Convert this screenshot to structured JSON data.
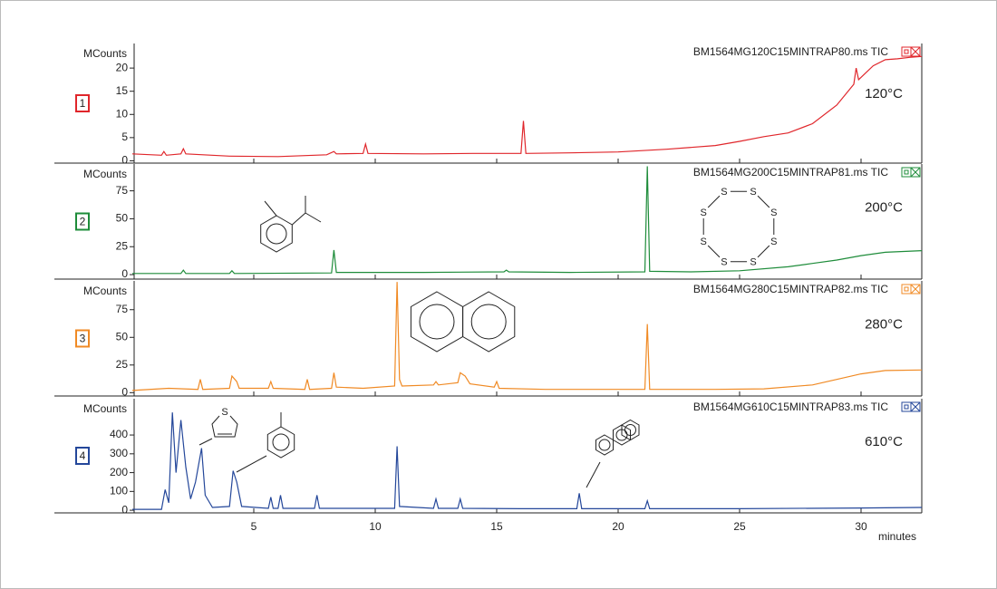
{
  "chart_data": [
    {
      "type": "line",
      "panel_label": "1",
      "title": "BM1564MG120C15MINTRAP80.ms TIC",
      "ylabel": "MCounts",
      "annotation": "120°C",
      "color": "#e0262b",
      "xlim": [
        0,
        32.5
      ],
      "ylim": [
        -0.5,
        25.3
      ],
      "yticks": [
        0,
        5,
        10,
        15,
        20
      ],
      "x": [
        0,
        1.2,
        1.3,
        1.4,
        2.0,
        2.1,
        2.2,
        4,
        6,
        8,
        8.3,
        8.4,
        9.5,
        9.6,
        9.7,
        12,
        14,
        16.0,
        16.1,
        16.2,
        18,
        20,
        22,
        24,
        25,
        26,
        27,
        28,
        29,
        29.7,
        29.8,
        29.9,
        30.5,
        31,
        31.5,
        32,
        32.5
      ],
      "values": [
        1.5,
        1.2,
        2,
        1.2,
        1.5,
        2.6,
        1.5,
        1.0,
        0.9,
        1.3,
        2,
        1.5,
        1.6,
        3.6,
        1.6,
        1.5,
        1.6,
        1.6,
        8.6,
        1.6,
        1.7,
        1.9,
        2.5,
        3.3,
        4.2,
        5.2,
        6.0,
        8.0,
        12.0,
        16.5,
        20,
        17.5,
        20.5,
        21.8,
        22,
        22.3,
        22.5
      ]
    },
    {
      "type": "line",
      "panel_label": "2",
      "title": "BM1564MG200C15MINTRAP81.ms TIC",
      "ylabel": "MCounts",
      "annotation": "200°C",
      "color": "#1e8c3a",
      "xlim": [
        0,
        32.5
      ],
      "ylim": [
        -4,
        99
      ],
      "yticks": [
        0,
        25,
        50,
        75
      ],
      "structure_atoms": [
        "S",
        "S",
        "S",
        "S",
        "S",
        "S",
        "S",
        "S"
      ],
      "x": [
        0,
        2.0,
        2.1,
        2.2,
        4.0,
        4.1,
        4.2,
        8.2,
        8.3,
        8.4,
        12,
        15.3,
        15.4,
        15.5,
        18,
        21.1,
        21.2,
        21.3,
        23,
        25,
        27,
        28,
        29,
        30,
        31,
        32.5
      ],
      "values": [
        1,
        1,
        4,
        1,
        1,
        3.5,
        1,
        1.5,
        22,
        2,
        2,
        2.5,
        4,
        2.5,
        2,
        2.5,
        97,
        3,
        2.5,
        3.5,
        7,
        10,
        13,
        17,
        20,
        21.5
      ]
    },
    {
      "type": "line",
      "panel_label": "3",
      "title": "BM1564MG280C15MINTRAP82.ms TIC",
      "ylabel": "MCounts",
      "annotation": "280°C",
      "color": "#f08a24",
      "xlim": [
        0,
        32.5
      ],
      "ylim": [
        -3,
        101
      ],
      "yticks": [
        0,
        25,
        50,
        75
      ],
      "x": [
        0,
        1.5,
        2.7,
        2.8,
        2.9,
        4.0,
        4.1,
        4.3,
        4.4,
        5.6,
        5.7,
        5.8,
        7.1,
        7.2,
        7.3,
        8.2,
        8.3,
        8.4,
        9.5,
        10.8,
        10.9,
        11.0,
        11.1,
        12.4,
        12.5,
        12.6,
        13.4,
        13.5,
        13.7,
        13.9,
        14.9,
        15.0,
        15.1,
        17,
        21.1,
        21.2,
        21.3,
        24,
        26,
        28,
        29,
        30,
        31,
        32.5
      ],
      "values": [
        2,
        4,
        3,
        12,
        3,
        4,
        15,
        10,
        4,
        4,
        10,
        4,
        3,
        12,
        3,
        4,
        18,
        5,
        4,
        6,
        100,
        12,
        6,
        7,
        10,
        7,
        9,
        18,
        15,
        8,
        5,
        10,
        4,
        3,
        3,
        62,
        3,
        3,
        3.5,
        7,
        12,
        17,
        20,
        20.5
      ]
    },
    {
      "type": "line",
      "panel_label": "4",
      "title": "BM1564MG610C15MINTRAP83.ms TIC",
      "ylabel": "MCounts",
      "annotation": "610°C",
      "color": "#24479a",
      "xlim": [
        0,
        32.5
      ],
      "ylim": [
        -14,
        593
      ],
      "yticks": [
        0,
        100,
        200,
        300,
        400
      ],
      "xticks": [
        5,
        10,
        15,
        20,
        25,
        30
      ],
      "xlabel": "minutes",
      "structure_atoms": [
        "S"
      ],
      "x": [
        0,
        1.2,
        1.35,
        1.5,
        1.65,
        1.8,
        2.0,
        2.2,
        2.4,
        2.6,
        2.85,
        3.0,
        3.3,
        4.0,
        4.15,
        4.3,
        4.5,
        5.6,
        5.7,
        5.8,
        6.0,
        6.1,
        6.2,
        7.5,
        7.6,
        7.7,
        9,
        10.8,
        10.9,
        11.0,
        12.4,
        12.5,
        12.6,
        13.4,
        13.5,
        13.6,
        16,
        18.3,
        18.4,
        18.5,
        21.1,
        21.2,
        21.3,
        25,
        30,
        32.5
      ],
      "values": [
        5,
        5,
        110,
        40,
        520,
        200,
        480,
        230,
        60,
        150,
        330,
        80,
        15,
        20,
        210,
        150,
        20,
        10,
        70,
        10,
        10,
        80,
        10,
        10,
        80,
        10,
        10,
        10,
        340,
        20,
        10,
        60,
        10,
        10,
        60,
        10,
        8,
        8,
        90,
        8,
        8,
        50,
        8,
        8,
        12,
        15
      ]
    }
  ]
}
